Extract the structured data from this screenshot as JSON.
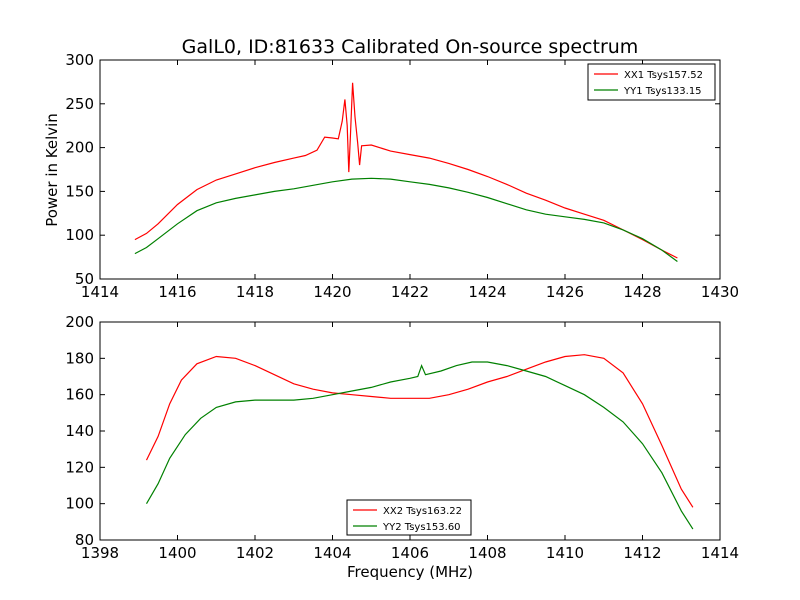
{
  "figure": {
    "title": "GalL0, ID:81633 Calibrated On-source spectrum",
    "ylabel": "Power in Kelvin",
    "xlabel": "Frequency (MHz)"
  },
  "chart_data": [
    {
      "type": "line",
      "xlim": [
        1414,
        1430
      ],
      "ylim": [
        50,
        300
      ],
      "xticks": [
        1414,
        1416,
        1418,
        1420,
        1422,
        1424,
        1426,
        1428,
        1430
      ],
      "yticks": [
        50,
        100,
        150,
        200,
        250,
        300
      ],
      "legend_position": "top-right",
      "grid": false,
      "series": [
        {
          "name": "XX1 Tsys157.52",
          "color": "#ff0000",
          "points": [
            [
              1414.9,
              95
            ],
            [
              1415.2,
              102
            ],
            [
              1415.5,
              113
            ],
            [
              1416.0,
              135
            ],
            [
              1416.5,
              152
            ],
            [
              1417.0,
              163
            ],
            [
              1417.5,
              170
            ],
            [
              1418.0,
              177
            ],
            [
              1418.5,
              183
            ],
            [
              1419.0,
              188
            ],
            [
              1419.3,
              191
            ],
            [
              1419.6,
              197
            ],
            [
              1419.8,
              212
            ],
            [
              1420.0,
              211
            ],
            [
              1420.15,
              210
            ],
            [
              1420.25,
              230
            ],
            [
              1420.32,
              255
            ],
            [
              1420.38,
              225
            ],
            [
              1420.42,
              172
            ],
            [
              1420.46,
              210
            ],
            [
              1420.52,
              274
            ],
            [
              1420.58,
              235
            ],
            [
              1420.65,
              205
            ],
            [
              1420.7,
              180
            ],
            [
              1420.75,
              202
            ],
            [
              1421.0,
              203
            ],
            [
              1421.5,
              196
            ],
            [
              1422.0,
              192
            ],
            [
              1422.5,
              188
            ],
            [
              1423.0,
              182
            ],
            [
              1423.5,
              175
            ],
            [
              1424.0,
              167
            ],
            [
              1424.5,
              158
            ],
            [
              1425.0,
              148
            ],
            [
              1425.5,
              140
            ],
            [
              1426.0,
              131
            ],
            [
              1426.5,
              124
            ],
            [
              1427.0,
              117
            ],
            [
              1427.5,
              106
            ],
            [
              1428.0,
              95
            ],
            [
              1428.5,
              83
            ],
            [
              1428.9,
              74
            ]
          ]
        },
        {
          "name": "YY1 Tsys133.15",
          "color": "#008000",
          "points": [
            [
              1414.9,
              79
            ],
            [
              1415.2,
              86
            ],
            [
              1415.5,
              96
            ],
            [
              1416.0,
              113
            ],
            [
              1416.5,
              128
            ],
            [
              1417.0,
              137
            ],
            [
              1417.5,
              142
            ],
            [
              1418.0,
              146
            ],
            [
              1418.5,
              150
            ],
            [
              1419.0,
              153
            ],
            [
              1419.5,
              157
            ],
            [
              1420.0,
              161
            ],
            [
              1420.5,
              164
            ],
            [
              1421.0,
              165
            ],
            [
              1421.5,
              164
            ],
            [
              1422.0,
              161
            ],
            [
              1422.5,
              158
            ],
            [
              1423.0,
              154
            ],
            [
              1423.5,
              149
            ],
            [
              1424.0,
              143
            ],
            [
              1424.5,
              136
            ],
            [
              1425.0,
              129
            ],
            [
              1425.5,
              124
            ],
            [
              1426.0,
              121
            ],
            [
              1426.5,
              118
            ],
            [
              1427.0,
              114
            ],
            [
              1427.5,
              106
            ],
            [
              1428.0,
              96
            ],
            [
              1428.5,
              83
            ],
            [
              1428.9,
              70
            ]
          ]
        }
      ]
    },
    {
      "type": "line",
      "xlim": [
        1398,
        1414
      ],
      "ylim": [
        80,
        200
      ],
      "xticks": [
        1398,
        1400,
        1402,
        1404,
        1406,
        1408,
        1410,
        1412,
        1414
      ],
      "yticks": [
        80,
        100,
        120,
        140,
        160,
        180,
        200
      ],
      "legend_position": "bottom-center",
      "grid": false,
      "series": [
        {
          "name": "XX2 Tsys163.22",
          "color": "#ff0000",
          "points": [
            [
              1399.2,
              124
            ],
            [
              1399.5,
              137
            ],
            [
              1399.8,
              155
            ],
            [
              1400.1,
              168
            ],
            [
              1400.5,
              177
            ],
            [
              1401.0,
              181
            ],
            [
              1401.5,
              180
            ],
            [
              1402.0,
              176
            ],
            [
              1402.5,
              171
            ],
            [
              1403.0,
              166
            ],
            [
              1403.5,
              163
            ],
            [
              1404.0,
              161
            ],
            [
              1404.5,
              160
            ],
            [
              1405.0,
              159
            ],
            [
              1405.5,
              158
            ],
            [
              1406.0,
              158
            ],
            [
              1406.5,
              158
            ],
            [
              1407.0,
              160
            ],
            [
              1407.5,
              163
            ],
            [
              1408.0,
              167
            ],
            [
              1408.5,
              170
            ],
            [
              1409.0,
              174
            ],
            [
              1409.5,
              178
            ],
            [
              1410.0,
              181
            ],
            [
              1410.5,
              182
            ],
            [
              1411.0,
              180
            ],
            [
              1411.5,
              172
            ],
            [
              1412.0,
              155
            ],
            [
              1412.5,
              132
            ],
            [
              1413.0,
              108
            ],
            [
              1413.3,
              98
            ]
          ]
        },
        {
          "name": "YY2 Tsys153.60",
          "color": "#008000",
          "points": [
            [
              1399.2,
              100
            ],
            [
              1399.5,
              111
            ],
            [
              1399.8,
              125
            ],
            [
              1400.2,
              138
            ],
            [
              1400.6,
              147
            ],
            [
              1401.0,
              153
            ],
            [
              1401.5,
              156
            ],
            [
              1402.0,
              157
            ],
            [
              1402.5,
              157
            ],
            [
              1403.0,
              157
            ],
            [
              1403.5,
              158
            ],
            [
              1404.0,
              160
            ],
            [
              1404.5,
              162
            ],
            [
              1405.0,
              164
            ],
            [
              1405.5,
              167
            ],
            [
              1406.0,
              169
            ],
            [
              1406.2,
              170
            ],
            [
              1406.3,
              176
            ],
            [
              1406.4,
              171
            ],
            [
              1406.8,
              173
            ],
            [
              1407.2,
              176
            ],
            [
              1407.6,
              178
            ],
            [
              1408.0,
              178
            ],
            [
              1408.5,
              176
            ],
            [
              1409.0,
              173
            ],
            [
              1409.5,
              170
            ],
            [
              1410.0,
              165
            ],
            [
              1410.5,
              160
            ],
            [
              1411.0,
              153
            ],
            [
              1411.5,
              145
            ],
            [
              1412.0,
              133
            ],
            [
              1412.5,
              117
            ],
            [
              1413.0,
              96
            ],
            [
              1413.3,
              86
            ]
          ]
        }
      ]
    }
  ]
}
